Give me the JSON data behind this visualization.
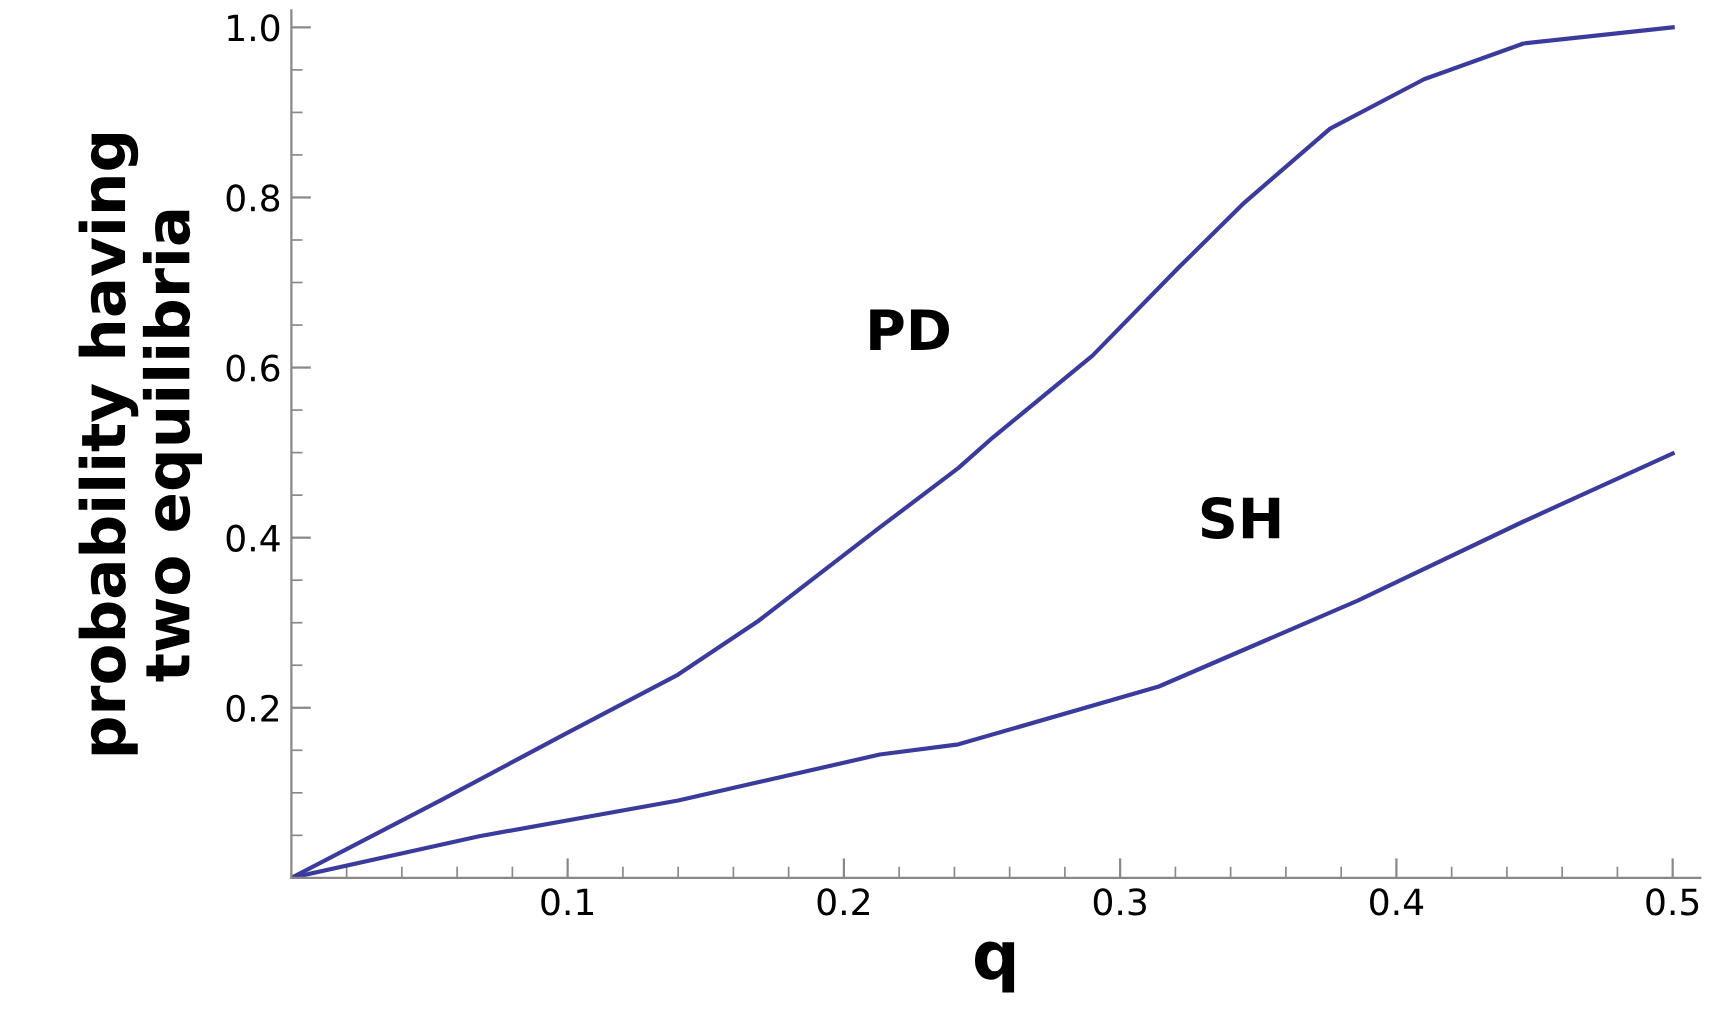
{
  "chart_data": {
    "type": "line",
    "xlabel": "q",
    "ylabel": "probability having\ntwo equilibria",
    "xlim": [
      0,
      0.51
    ],
    "ylim": [
      0,
      1.02
    ],
    "xticks": [
      {
        "value": 0.02,
        "label": null
      },
      {
        "value": 0.04,
        "label": null
      },
      {
        "value": 0.06,
        "label": null
      },
      {
        "value": 0.08,
        "label": null
      },
      0.1,
      {
        "value": 0.12,
        "label": null
      },
      {
        "value": 0.14,
        "label": null
      },
      {
        "value": 0.16,
        "label": null
      },
      {
        "value": 0.18,
        "label": null
      },
      0.2,
      {
        "value": 0.22,
        "label": null
      },
      {
        "value": 0.24,
        "label": null
      },
      {
        "value": 0.26,
        "label": null
      },
      {
        "value": 0.28,
        "label": null
      },
      0.3,
      {
        "value": 0.32,
        "label": null
      },
      {
        "value": 0.34,
        "label": null
      },
      {
        "value": 0.36,
        "label": null
      },
      {
        "value": 0.38,
        "label": null
      },
      0.4,
      {
        "value": 0.42,
        "label": null
      },
      {
        "value": 0.44,
        "label": null
      },
      {
        "value": 0.46,
        "label": null
      },
      {
        "value": 0.48,
        "label": null
      },
      0.5
    ],
    "yticks": [
      {
        "value": 0.05,
        "label": null
      },
      {
        "value": 0.1,
        "label": null
      },
      {
        "value": 0.15,
        "label": null
      },
      0.2,
      {
        "value": 0.25,
        "label": null
      },
      {
        "value": 0.3,
        "label": null
      },
      {
        "value": 0.35,
        "label": null
      },
      0.4,
      {
        "value": 0.45,
        "label": null
      },
      {
        "value": 0.5,
        "label": null
      },
      {
        "value": 0.55,
        "label": null
      },
      0.6,
      {
        "value": 0.65,
        "label": null
      },
      {
        "value": 0.7,
        "label": null
      },
      {
        "value": 0.75,
        "label": null
      },
      0.8,
      {
        "value": 0.85,
        "label": null
      },
      {
        "value": 0.9,
        "label": null
      },
      {
        "value": 0.95,
        "label": null
      },
      {
        "value": 1.0,
        "label": "1.0"
      }
    ],
    "grid": false,
    "marker": "none",
    "line_style": "solid",
    "series": [
      {
        "name": "PD",
        "color": "#3b3b9e",
        "x": [
          0,
          0.054,
          0.099,
          0.14,
          0.169,
          0.213,
          0.2415,
          0.254,
          0.29,
          0.321,
          0.345,
          0.376,
          0.41,
          0.446,
          0.5
        ],
        "values": [
          0,
          0.091,
          0.169,
          0.239,
          0.302,
          0.412,
          0.482,
          0.518,
          0.614,
          0.717,
          0.794,
          0.881,
          0.939,
          0.981,
          1.0
        ]
      },
      {
        "name": "SH",
        "color": "#3b3b9e",
        "x": [
          0,
          0.068,
          0.14,
          0.213,
          0.2415,
          0.314,
          0.386,
          0.446,
          0.5
        ],
        "values": [
          0,
          0.049,
          0.091,
          0.145,
          0.157,
          0.225,
          0.326,
          0.419,
          0.499
        ]
      }
    ]
  }
}
